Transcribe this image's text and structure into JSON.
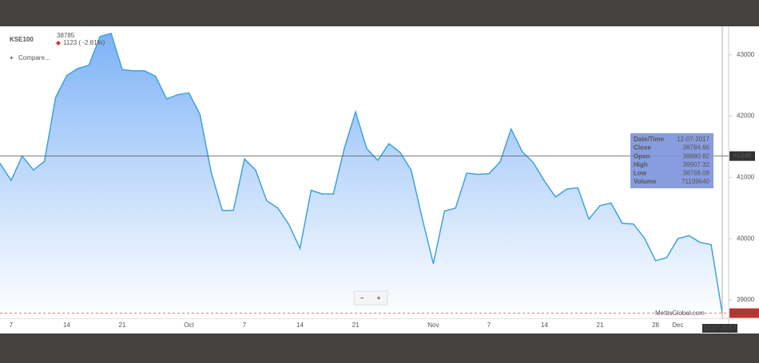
{
  "chart_data": {
    "type": "area",
    "title": "KSE100",
    "last_price": 38785,
    "change": "1123 ( -2.81%)",
    "compare": "Compare...",
    "watermark": "MettisGlobal.com",
    "zoom_out": "−",
    "zoom_in": "+",
    "color": "#3fa2dc",
    "fill_top": "#7db2f7",
    "categories": [
      null,
      "7",
      null,
      null,
      null,
      null,
      "14",
      null,
      null,
      null,
      null,
      "21",
      null,
      null,
      null,
      null,
      null,
      "Oct",
      null,
      null,
      null,
      null,
      "7",
      null,
      null,
      null,
      null,
      "14",
      null,
      null,
      null,
      null,
      "21",
      null,
      null,
      null,
      null,
      null,
      null,
      "Nov",
      null,
      null,
      null,
      null,
      "7",
      null,
      null,
      null,
      null,
      "14",
      null,
      null,
      null,
      null,
      "21",
      null,
      null,
      null,
      null,
      "28",
      null,
      "Dec",
      null,
      null,
      null,
      null
    ],
    "values": [
      41230,
      40950,
      41350,
      41120,
      41260,
      42300,
      42660,
      42780,
      42830,
      43300,
      43350,
      42760,
      42740,
      42740,
      42650,
      42280,
      42350,
      42380,
      42030,
      41090,
      40460,
      40460,
      41300,
      41120,
      40620,
      40500,
      40230,
      39840,
      40790,
      40730,
      40730,
      41480,
      42070,
      41470,
      41280,
      41550,
      41410,
      41120,
      40330,
      39590,
      40450,
      40500,
      41070,
      41050,
      41060,
      41250,
      41790,
      41420,
      41240,
      40940,
      40680,
      40810,
      40830,
      40320,
      40540,
      40580,
      40250,
      40240,
      40010,
      39640,
      39690,
      40000,
      40050,
      39940,
      39900,
      38784.66
    ],
    "ylim": [
      38700,
      43450
    ],
    "yticks": [
      39000,
      40000,
      41000,
      42000,
      43000
    ],
    "crosshair_y": 41348,
    "crosshair_date": "12-07-2017",
    "tooltip": [
      {
        "label": "Date/Time",
        "value": "12-07-2017"
      },
      {
        "label": "Close",
        "value": 38784.66
      },
      {
        "label": "Open",
        "value": 39880.82
      },
      {
        "label": "High",
        "value": 39907.32
      },
      {
        "label": "Low",
        "value": 38769.09
      },
      {
        "label": "Volume",
        "value": 71109640
      }
    ]
  }
}
